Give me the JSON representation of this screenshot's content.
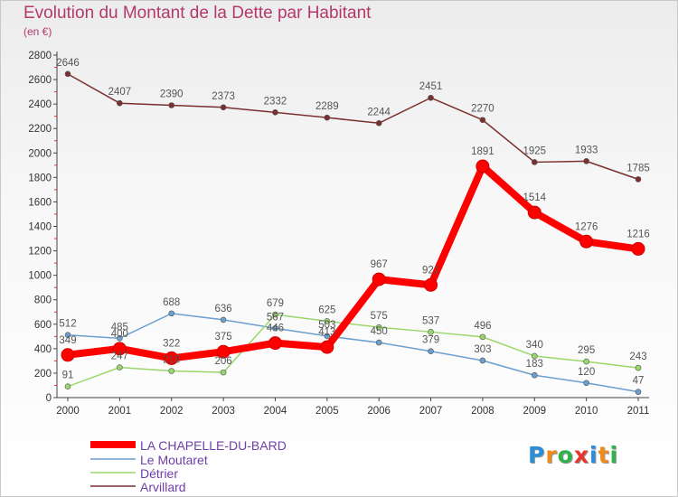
{
  "title": "Evolution du Montant de la Dette par Habitant",
  "subtitle": "(en €)",
  "logo": {
    "text": "Proxiti",
    "colors": [
      "#2a8fd6",
      "#f08a1c",
      "#2fb34a",
      "#e8342f",
      "#2a8fd6",
      "#f08a1c",
      "#2fb34a"
    ]
  },
  "chart_data": {
    "type": "line",
    "title": "Evolution du Montant de la Dette par Habitant",
    "subtitle": "(en €)",
    "xlabel": "",
    "ylabel": "",
    "x": [
      "2000",
      "2001",
      "2002",
      "2003",
      "2004",
      "2005",
      "2006",
      "2007",
      "2008",
      "2009",
      "2010",
      "2011"
    ],
    "ylim": [
      0,
      2800
    ],
    "yticks": [
      0,
      200,
      400,
      600,
      800,
      1000,
      1200,
      1400,
      1600,
      1800,
      2000,
      2200,
      2400,
      2600,
      2800
    ],
    "grid": false,
    "legend": "bottom-left",
    "series": [
      {
        "name": "LA CHAPELLE-DU-BARD",
        "color": "#ff0000",
        "width": 8,
        "marker": 7,
        "values": [
          349,
          400,
          322,
          375,
          446,
          413,
          967,
          921,
          1891,
          1514,
          1276,
          1216
        ]
      },
      {
        "name": "Le Moutaret",
        "color": "#6a9fd0",
        "width": 1.5,
        "marker": 3,
        "values": [
          512,
          485,
          688,
          636,
          567,
          503,
          450,
          379,
          303,
          183,
          120,
          47
        ]
      },
      {
        "name": "Détrier",
        "color": "#9ad76b",
        "width": 1.5,
        "marker": 3,
        "values": [
          91,
          247,
          218,
          206,
          679,
          625,
          575,
          537,
          496,
          340,
          295,
          243
        ]
      },
      {
        "name": "Arvillard",
        "color": "#7b2f2f",
        "width": 1.5,
        "marker": 3,
        "values": [
          2646,
          2407,
          2390,
          2373,
          2332,
          2289,
          2244,
          2451,
          2270,
          1925,
          1933,
          1785
        ]
      }
    ]
  }
}
